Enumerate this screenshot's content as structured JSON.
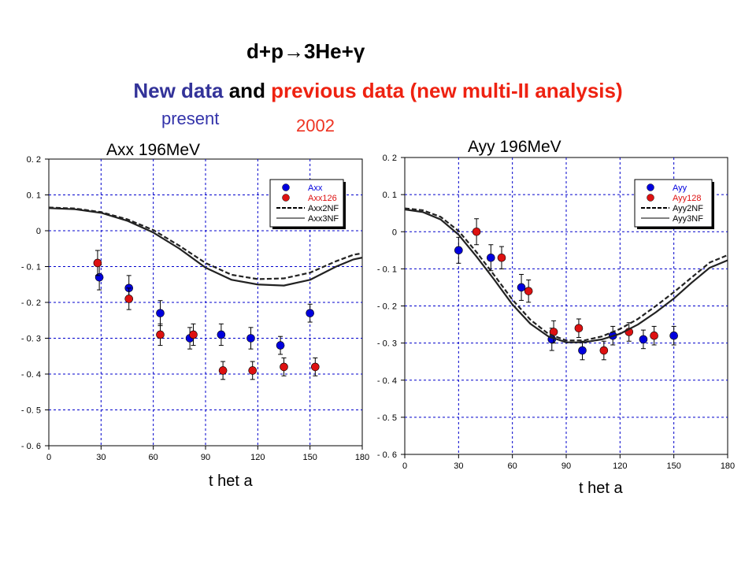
{
  "header": {
    "reaction": "d+p→3He+γ",
    "headline_parts": [
      {
        "text": "New data",
        "color": "#333399"
      },
      {
        "text": " and ",
        "color": "#000000"
      },
      {
        "text": "previous data",
        "color": "#ee2211"
      },
      {
        "text": " (new multi-II analysis)",
        "color": "#ee2211"
      }
    ],
    "note_present": "present",
    "note_year": "2002"
  },
  "colors": {
    "blue_points": "#0000dd",
    "red_points": "#dd1111",
    "grid": "#0000cc",
    "curve": "#222222"
  },
  "chart_data": [
    {
      "type": "scatter",
      "title": "Axx 196MeV",
      "xlabel": "t het a",
      "ylabel": "",
      "xlim": [
        0,
        180
      ],
      "ylim": [
        -0.6,
        0.2
      ],
      "xticks": [
        0,
        30,
        60,
        90,
        120,
        150,
        180
      ],
      "yticks": [
        0.2,
        0.1,
        0,
        -0.1,
        -0.2,
        -0.3,
        -0.4,
        -0.5,
        -0.6
      ],
      "ytick_labels": [
        "0. 2",
        "0. 1",
        "0",
        "- 0. 1",
        "- 0. 2",
        "- 0. 3",
        "- 0. 4",
        "- 0. 5",
        "- 0. 6"
      ],
      "grid": true,
      "legend_position": "top-right",
      "series": [
        {
          "name": "Axx",
          "kind": "points",
          "color": "#0000dd",
          "x": [
            29,
            46,
            64,
            81,
            99,
            116,
            133,
            150
          ],
          "y": [
            -0.13,
            -0.16,
            -0.23,
            -0.3,
            -0.29,
            -0.3,
            -0.32,
            -0.23
          ],
          "err": [
            0.035,
            0.035,
            0.035,
            0.03,
            0.03,
            0.03,
            0.025,
            0.025
          ]
        },
        {
          "name": "Axx126",
          "kind": "points",
          "color": "#dd1111",
          "x": [
            28,
            46,
            64,
            83,
            100,
            117,
            135,
            153
          ],
          "y": [
            -0.09,
            -0.19,
            -0.29,
            -0.29,
            -0.39,
            -0.39,
            -0.38,
            -0.38
          ],
          "err": [
            0.035,
            0.03,
            0.03,
            0.03,
            0.025,
            0.025,
            0.025,
            0.025
          ]
        },
        {
          "name": "Axx2NF",
          "kind": "dashed",
          "x": [
            0,
            15,
            30,
            45,
            60,
            75,
            90,
            105,
            120,
            135,
            150,
            165,
            175,
            180
          ],
          "y": [
            0.065,
            0.062,
            0.052,
            0.032,
            0.002,
            -0.042,
            -0.09,
            -0.123,
            -0.135,
            -0.133,
            -0.117,
            -0.085,
            -0.067,
            -0.063
          ]
        },
        {
          "name": "Axx3NF",
          "kind": "solid",
          "x": [
            0,
            15,
            30,
            45,
            60,
            75,
            90,
            105,
            120,
            135,
            150,
            165,
            175,
            180
          ],
          "y": [
            0.063,
            0.06,
            0.05,
            0.028,
            -0.005,
            -0.05,
            -0.103,
            -0.137,
            -0.15,
            -0.153,
            -0.137,
            -0.1,
            -0.08,
            -0.075
          ]
        }
      ]
    },
    {
      "type": "scatter",
      "title": "Ayy 196MeV",
      "xlabel": "t het a",
      "ylabel": "",
      "xlim": [
        0,
        180
      ],
      "ylim": [
        -0.6,
        0.2
      ],
      "xticks": [
        0,
        30,
        60,
        90,
        120,
        150,
        180
      ],
      "yticks": [
        0.2,
        0.1,
        0,
        -0.1,
        -0.2,
        -0.3,
        -0.4,
        -0.5,
        -0.6
      ],
      "ytick_labels": [
        "0. 2",
        "0. 1",
        "0",
        "- 0. 1",
        "- 0. 2",
        "- 0. 3",
        "- 0. 4",
        "- 0. 5",
        "- 0. 6"
      ],
      "grid": true,
      "legend_position": "top-right",
      "series": [
        {
          "name": "Ayy",
          "kind": "points",
          "color": "#0000dd",
          "x": [
            30,
            48,
            65,
            82,
            99,
            116,
            133,
            150
          ],
          "y": [
            -0.05,
            -0.07,
            -0.15,
            -0.29,
            -0.32,
            -0.28,
            -0.29,
            -0.28
          ],
          "err": [
            0.035,
            0.035,
            0.035,
            0.03,
            0.025,
            0.025,
            0.025,
            0.025
          ]
        },
        {
          "name": "Ayy128",
          "kind": "points",
          "color": "#dd1111",
          "x": [
            40,
            54,
            69,
            83,
            97,
            111,
            125,
            139
          ],
          "y": [
            0.0,
            -0.07,
            -0.16,
            -0.27,
            -0.26,
            -0.32,
            -0.27,
            -0.28
          ],
          "err": [
            0.035,
            0.03,
            0.03,
            0.03,
            0.025,
            0.025,
            0.025,
            0.025
          ]
        },
        {
          "name": "Ayy2NF",
          "kind": "dashed",
          "x": [
            0,
            10,
            20,
            30,
            40,
            50,
            60,
            70,
            80,
            90,
            100,
            110,
            120,
            130,
            140,
            150,
            160,
            170,
            180
          ],
          "y": [
            0.063,
            0.058,
            0.04,
            0.002,
            -0.055,
            -0.118,
            -0.183,
            -0.237,
            -0.275,
            -0.293,
            -0.293,
            -0.282,
            -0.262,
            -0.235,
            -0.2,
            -0.163,
            -0.123,
            -0.083,
            -0.063
          ]
        },
        {
          "name": "Ayy3NF",
          "kind": "solid",
          "x": [
            0,
            10,
            20,
            30,
            40,
            50,
            60,
            70,
            80,
            90,
            100,
            110,
            120,
            130,
            140,
            150,
            160,
            170,
            180
          ],
          "y": [
            0.06,
            0.053,
            0.033,
            -0.008,
            -0.067,
            -0.13,
            -0.196,
            -0.248,
            -0.282,
            -0.298,
            -0.298,
            -0.29,
            -0.275,
            -0.25,
            -0.217,
            -0.18,
            -0.137,
            -0.097,
            -0.077
          ]
        }
      ]
    }
  ]
}
